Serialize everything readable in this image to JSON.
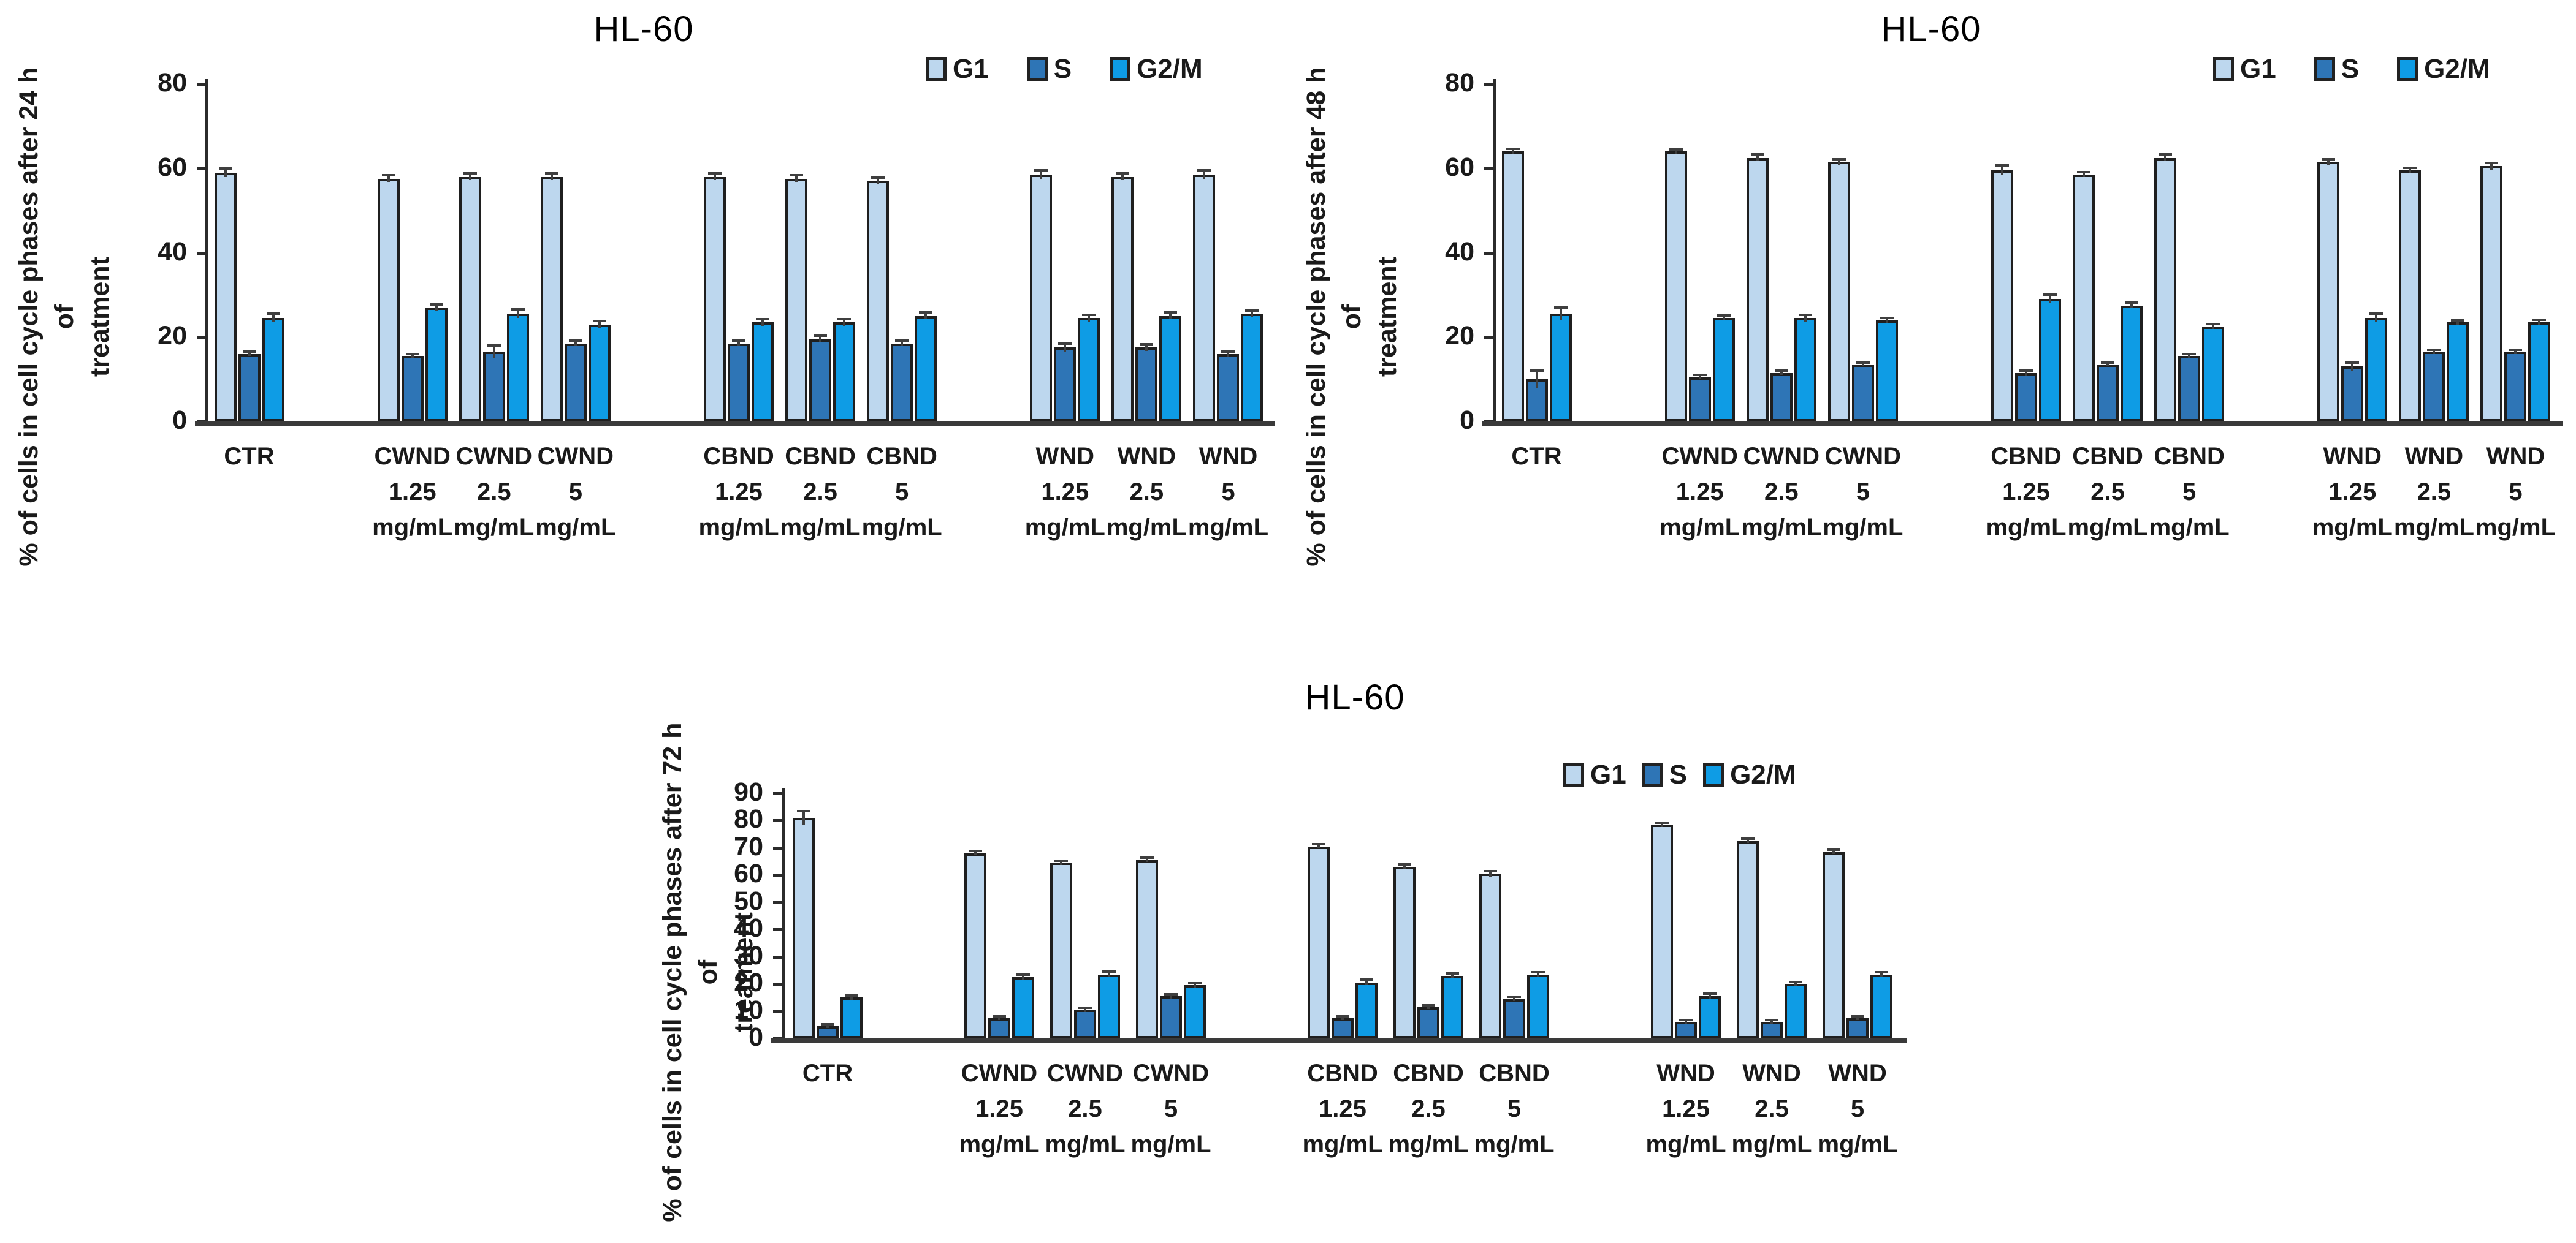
{
  "figure": {
    "background": "#ffffff",
    "cell_line": "HL-60"
  },
  "colors": {
    "g1_fill": "#BDD7EE",
    "s_fill": "#2E75B6",
    "g2m_fill": "#0E9CE5",
    "bar_border": "#1F1F1F",
    "axis": "#2B2B2B",
    "error_bar": "#3F3F3F",
    "text": "#000000"
  },
  "legend": {
    "items": [
      {
        "label": "G1",
        "color": "#BDD7EE"
      },
      {
        "label": "S",
        "color": "#2E75B6"
      },
      {
        "label": "G2/M",
        "color": "#0E9CE5"
      }
    ]
  },
  "chart_data": [
    {
      "type": "bar",
      "title": "HL-60",
      "ylabel": "% of cells in cell cycle  phases after 24 h of",
      "ylabel_line2": "treatment",
      "xlabel": "",
      "ylim": [
        0,
        80
      ],
      "yticks": [
        0,
        20,
        40,
        60,
        80
      ],
      "grid": false,
      "legend_position": "top-right",
      "categories": [
        "CTR",
        "CWND 1.25 mg/mL",
        "CWND 2.5 mg/mL",
        "CWND 5 mg/mL",
        "CBND 1.25 mg/mL",
        "CBND 2.5 mg/mL",
        "CBND 5 mg/mL",
        "WND 1.25 mg/mL",
        "WND 2.5 mg/mL",
        "WND 5 mg/mL"
      ],
      "category_lines": [
        [
          "CTR"
        ],
        [
          "CWND",
          "1.25",
          "mg/mL"
        ],
        [
          "CWND",
          "2.5",
          "mg/mL"
        ],
        [
          "CWND",
          "5",
          "mg/mL"
        ],
        [
          "CBND",
          "1.25",
          "mg/mL"
        ],
        [
          "CBND",
          "2.5",
          "mg/mL"
        ],
        [
          "CBND",
          "5",
          "mg/mL"
        ],
        [
          "WND",
          "1.25",
          "mg/mL"
        ],
        [
          "WND",
          "2.5",
          "mg/mL"
        ],
        [
          "WND",
          "5",
          "mg/mL"
        ]
      ],
      "series": [
        {
          "name": "G1",
          "values": [
            59,
            57.5,
            58,
            58,
            58,
            57.5,
            57,
            58.5,
            58,
            58.5
          ],
          "errors": [
            1,
            0.8,
            0.8,
            0.8,
            0.8,
            0.8,
            0.8,
            1,
            0.8,
            1
          ]
        },
        {
          "name": "S",
          "values": [
            16,
            15.5,
            16.5,
            18.5,
            18.5,
            19.5,
            18.5,
            17.5,
            17.5,
            16
          ],
          "errors": [
            0.5,
            0.5,
            1.5,
            0.6,
            0.6,
            0.8,
            0.6,
            1,
            0.8,
            0.6
          ]
        },
        {
          "name": "G2/M",
          "values": [
            24.5,
            27,
            25.5,
            23,
            23.5,
            23.5,
            25,
            24.5,
            25,
            25.5
          ],
          "errors": [
            1,
            0.8,
            1,
            0.8,
            0.8,
            0.8,
            0.8,
            0.8,
            0.8,
            0.8
          ]
        }
      ]
    },
    {
      "type": "bar",
      "title": "HL-60",
      "ylabel": "% of cells in cell cycle phases after 48 h of",
      "ylabel_line2": "treatment",
      "xlabel": "",
      "ylim": [
        0,
        80
      ],
      "yticks": [
        0,
        20,
        40,
        60,
        80
      ],
      "grid": false,
      "legend_position": "top-right",
      "categories": [
        "CTR",
        "CWND 1.25 mg/mL",
        "CWND 2.5 mg/mL",
        "CWND 5 mg/mL",
        "CBND 1.25 mg/mL",
        "CBND 2.5 mg/mL",
        "CBND 5 mg/mL",
        "WND 1.25 mg/mL",
        "WND 2.5 mg/mL",
        "WND 5 mg/mL"
      ],
      "category_lines": [
        [
          "CTR"
        ],
        [
          "CWND",
          "1.25",
          "mg/mL"
        ],
        [
          "CWND",
          "2.5",
          "mg/mL"
        ],
        [
          "CWND",
          "5",
          "mg/mL"
        ],
        [
          "CBND",
          "1.25",
          "mg/mL"
        ],
        [
          "CBND",
          "2.5",
          "mg/mL"
        ],
        [
          "CBND",
          "5",
          "mg/mL"
        ],
        [
          "WND",
          "1.25",
          "mg/mL"
        ],
        [
          "WND",
          "2.5",
          "mg/mL"
        ],
        [
          "WND",
          "5",
          "mg/mL"
        ]
      ],
      "series": [
        {
          "name": "G1",
          "values": [
            64,
            64,
            62.5,
            61.5,
            59.5,
            58.5,
            62.5,
            61.5,
            59.5,
            60.5
          ],
          "errors": [
            0.6,
            0.5,
            0.8,
            0.6,
            1.2,
            0.6,
            0.8,
            0.6,
            0.6,
            0.8
          ]
        },
        {
          "name": "S",
          "values": [
            10,
            10.5,
            11.5,
            13.5,
            11.5,
            13.5,
            15.5,
            13,
            16.5,
            16.5
          ],
          "errors": [
            2,
            0.5,
            0.5,
            0.5,
            0.6,
            0.5,
            0.5,
            1,
            0.5,
            0.5
          ]
        },
        {
          "name": "G2/M",
          "values": [
            25.5,
            24.5,
            24.5,
            24,
            29,
            27.5,
            22.5,
            24.5,
            23.5,
            23.5
          ],
          "errors": [
            1.5,
            0.6,
            0.8,
            0.6,
            1,
            0.6,
            0.6,
            1,
            0.5,
            0.6
          ]
        }
      ]
    },
    {
      "type": "bar",
      "title": "HL-60",
      "ylabel": "% of cells in cell cycle phases after 72 h of",
      "ylabel_line2": "treatment",
      "xlabel": "",
      "ylim": [
        0,
        90
      ],
      "yticks": [
        0,
        10,
        20,
        30,
        40,
        50,
        60,
        70,
        80,
        90
      ],
      "grid": false,
      "legend_position": "top-right",
      "categories": [
        "CTR",
        "CWND 1.25 mg/mL",
        "CWND 2.5 mg/mL",
        "CWND 5 mg/mL",
        "CBND 1.25 mg/mL",
        "CBND 2.5 mg/mL",
        "CBND 5 mg/mL",
        "WND 1.25 mg/mL",
        "WND 2.5 mg/mL",
        "WND 5 mg/mL"
      ],
      "category_lines": [
        [
          "CTR"
        ],
        [
          "CWND",
          "1.25",
          "mg/mL"
        ],
        [
          "CWND",
          "2.5",
          "mg/mL"
        ],
        [
          "CWND",
          "5",
          "mg/mL"
        ],
        [
          "CBND",
          "1.25",
          "mg/mL"
        ],
        [
          "CBND",
          "2.5",
          "mg/mL"
        ],
        [
          "CBND",
          "5",
          "mg/mL"
        ],
        [
          "WND",
          "1.25",
          "mg/mL"
        ],
        [
          "WND",
          "2.5",
          "mg/mL"
        ],
        [
          "WND",
          "5",
          "mg/mL"
        ]
      ],
      "series": [
        {
          "name": "G1",
          "values": [
            81,
            68,
            64.5,
            65.5,
            70.5,
            63,
            60.5,
            78.5,
            72.5,
            68.5
          ],
          "errors": [
            2.5,
            0.8,
            0.8,
            0.8,
            0.8,
            0.8,
            1,
            0.8,
            0.8,
            0.8
          ]
        },
        {
          "name": "S",
          "values": [
            4.5,
            7.5,
            10.5,
            15.5,
            7.5,
            11.5,
            14.5,
            6,
            6,
            7.5
          ],
          "errors": [
            0.4,
            0.5,
            0.8,
            0.8,
            0.5,
            0.5,
            0.8,
            0.7,
            0.5,
            0.5
          ]
        },
        {
          "name": "G2/M",
          "values": [
            15,
            22.5,
            23.5,
            19.5,
            20.5,
            23,
            23.5,
            15.5,
            20,
            23.5
          ],
          "errors": [
            0.8,
            1,
            1,
            0.8,
            1,
            0.8,
            0.8,
            1,
            0.8,
            0.8
          ]
        }
      ]
    }
  ]
}
